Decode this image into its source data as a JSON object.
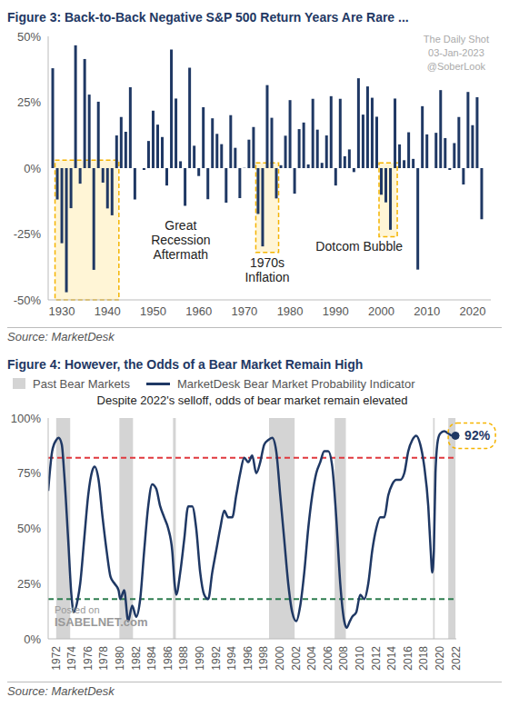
{
  "chart_data": [
    {
      "type": "bar",
      "title": "Figure 3: Back-to-Back Negative S&P 500 Return Years Are Rare ...",
      "source": "Source: MarketDesk",
      "watermark": [
        "The Daily Shot",
        "03-Jan-2023",
        "@SoberLook"
      ],
      "x": [
        1928,
        1929,
        1930,
        1931,
        1932,
        1933,
        1934,
        1935,
        1936,
        1937,
        1938,
        1939,
        1940,
        1941,
        1942,
        1943,
        1944,
        1945,
        1946,
        1947,
        1948,
        1949,
        1950,
        1951,
        1952,
        1953,
        1954,
        1955,
        1956,
        1957,
        1958,
        1959,
        1960,
        1961,
        1962,
        1963,
        1964,
        1965,
        1966,
        1967,
        1968,
        1969,
        1970,
        1971,
        1972,
        1973,
        1974,
        1975,
        1976,
        1977,
        1978,
        1979,
        1980,
        1981,
        1982,
        1983,
        1984,
        1985,
        1986,
        1987,
        1988,
        1989,
        1990,
        1991,
        1992,
        1993,
        1994,
        1995,
        1996,
        1997,
        1998,
        1999,
        2000,
        2001,
        2002,
        2003,
        2004,
        2005,
        2006,
        2007,
        2008,
        2009,
        2010,
        2011,
        2012,
        2013,
        2014,
        2015,
        2016,
        2017,
        2018,
        2019,
        2020,
        2021,
        2022
      ],
      "values": [
        37.9,
        -11.9,
        -28.5,
        -47.1,
        -15.2,
        46.6,
        -5.9,
        41.4,
        27.9,
        -38.6,
        25.2,
        -5.5,
        -15.3,
        -17.9,
        12.4,
        19.4,
        13.8,
        30.7,
        -11.9,
        0,
        -0.7,
        10.3,
        21.8,
        16.5,
        11.8,
        -6.6,
        45,
        26.4,
        2.6,
        -14.3,
        38.1,
        8.5,
        -3,
        23.1,
        -11.8,
        18.9,
        13,
        9.1,
        -13.1,
        20.1,
        7.7,
        -11.4,
        0.1,
        10.8,
        15.6,
        -17.4,
        -29.7,
        31.5,
        19.1,
        -11.5,
        1.1,
        12.3,
        25.8,
        -9.7,
        14.8,
        17.3,
        1.4,
        26.3,
        14.6,
        2,
        12.4,
        27.3,
        -6.6,
        26.3,
        4.5,
        7.1,
        -1.5,
        34.1,
        20.3,
        31,
        26.7,
        19.5,
        -10.1,
        -13,
        -23.4,
        26.4,
        9,
        3,
        13.6,
        3.5,
        -38.5,
        23.5,
        12.8,
        0,
        13.4,
        29.6,
        11.4,
        -0.7,
        9.5,
        19.4,
        -6.2,
        28.9,
        16.3,
        26.9,
        -19.4
      ],
      "color": "#1f3864",
      "xlim": [
        1927,
        2024
      ],
      "xticks": [
        1930,
        1940,
        1950,
        1960,
        1970,
        1980,
        1990,
        2000,
        2010,
        2020
      ],
      "ylim": [
        -50,
        50
      ],
      "yticks": [
        {
          "value": -50,
          "label": "-50%"
        },
        {
          "value": -25,
          "label": "-25%"
        },
        {
          "value": 0,
          "label": "0%"
        },
        {
          "value": 25,
          "label": "25%"
        },
        {
          "value": 50,
          "label": "50%"
        }
      ],
      "highlights": [
        {
          "label": "Great Recession Aftermath",
          "xlim": [
            1928.5,
            1942.5
          ],
          "ylim": [
            -50,
            3
          ]
        },
        {
          "label": "1970s Inflation",
          "xlim": [
            1972.5,
            1977.5
          ],
          "ylim": [
            -32,
            2
          ]
        },
        {
          "label": "Dotcom Bubble",
          "xlim": [
            1999.5,
            2003.5
          ],
          "ylim": [
            -26,
            2
          ]
        }
      ],
      "grid": false
    },
    {
      "type": "line",
      "title": "Figure 4: However, the Odds of a Bear Market Remain High",
      "subtitle": "Despite 2022's selloff, odds of bear market remain elevated",
      "source": "Source: MarketDesk",
      "watermark": [
        "Posted on",
        "ISABELNET.com"
      ],
      "legend": "top",
      "x": [
        1972,
        1972.5,
        1973,
        1973.3,
        1973.7,
        1974,
        1974.5,
        1974.9,
        1975.2,
        1975.7,
        1976,
        1976.5,
        1977,
        1977.5,
        1977.8,
        1978.3,
        1978.8,
        1979.3,
        1979.8,
        1980.3,
        1980.8,
        1981,
        1981.5,
        1982,
        1982.5,
        1983,
        1983.5,
        1984,
        1984.5,
        1985,
        1985.5,
        1986,
        1986.5,
        1987,
        1987.5,
        1987.8,
        1988,
        1988.5,
        1989,
        1989.5,
        1990,
        1990.5,
        1991,
        1991.5,
        1992,
        1992.5,
        1993,
        1993.5,
        1994,
        1994.5,
        1995,
        1995.5,
        1996,
        1996.5,
        1997,
        1997.5,
        1998,
        1998.5,
        1999,
        1999.5,
        2000,
        2000.5,
        2001,
        2001.5,
        2002,
        2002.5,
        2003,
        2003.5,
        2004,
        2004.5,
        2005,
        2005.5,
        2006,
        2006.5,
        2007,
        2007.5,
        2008,
        2008.5,
        2009,
        2009.3,
        2009.7,
        2010,
        2010.5,
        2011,
        2011.5,
        2012,
        2012.5,
        2013,
        2013.5,
        2014,
        2014.5,
        2015,
        2015.5,
        2016,
        2016.5,
        2017,
        2017.5,
        2018,
        2018.5,
        2019,
        2019.5,
        2019.8,
        2020,
        2020.2,
        2020.4,
        2020.7,
        2021,
        2021.5,
        2022,
        2022.5,
        2022.9
      ],
      "series": [
        {
          "name": "MarketDesk Bear Market Probability Indicator",
          "color": "#1f3864",
          "values": [
            67,
            85,
            90,
            91,
            88,
            75,
            45,
            20,
            12,
            18,
            25,
            45,
            65,
            76,
            78,
            72,
            55,
            40,
            28,
            25,
            22,
            18,
            22,
            8,
            15,
            10,
            18,
            40,
            60,
            70,
            68,
            60,
            55,
            50,
            40,
            25,
            20,
            30,
            45,
            60,
            60,
            50,
            30,
            20,
            18,
            30,
            40,
            50,
            58,
            55,
            55,
            65,
            75,
            82,
            80,
            83,
            75,
            80,
            88,
            90,
            91,
            85,
            65,
            45,
            25,
            12,
            8,
            15,
            30,
            50,
            65,
            75,
            80,
            85,
            85,
            78,
            55,
            25,
            8,
            5,
            8,
            10,
            12,
            20,
            18,
            25,
            40,
            50,
            55,
            55,
            65,
            70,
            72,
            72,
            75,
            85,
            90,
            92,
            88,
            78,
            60,
            40,
            30,
            40,
            75,
            90,
            93,
            94,
            93,
            92,
            92
          ]
        }
      ],
      "bear_markets": {
        "name": "Past Bear Markets",
        "color": "#d4d4d4",
        "ranges": [
          [
            1973,
            1974.75
          ],
          [
            1980.9,
            1982.6
          ],
          [
            1987.6,
            1987.95
          ],
          [
            1999.6,
            2002.8
          ],
          [
            2007.8,
            2009.2
          ],
          [
            2020.1,
            2020.3
          ],
          [
            2022,
            2022.9
          ]
        ]
      },
      "reference_lines": [
        {
          "value": 82,
          "color": "#e0393e",
          "line_style": "dashed"
        },
        {
          "value": 18,
          "color": "#2e7d4f",
          "line_style": "dashed"
        }
      ],
      "callout": {
        "x": 2022.9,
        "value": 92,
        "label": "92%"
      },
      "xlim": [
        1972,
        2023
      ],
      "xticks": [
        1972,
        1974,
        1976,
        1978,
        1980,
        1982,
        1984,
        1986,
        1988,
        1990,
        1992,
        1994,
        1996,
        1998,
        2000,
        2002,
        2004,
        2006,
        2008,
        2010,
        2012,
        2014,
        2016,
        2018,
        2020,
        2022
      ],
      "ylim": [
        0,
        100
      ],
      "yticks": [
        {
          "value": 0,
          "label": "0%"
        },
        {
          "value": 25,
          "label": "25%"
        },
        {
          "value": 50,
          "label": "50%"
        },
        {
          "value": 75,
          "label": "75%"
        },
        {
          "value": 100,
          "label": "100%"
        }
      ],
      "grid": false
    }
  ]
}
